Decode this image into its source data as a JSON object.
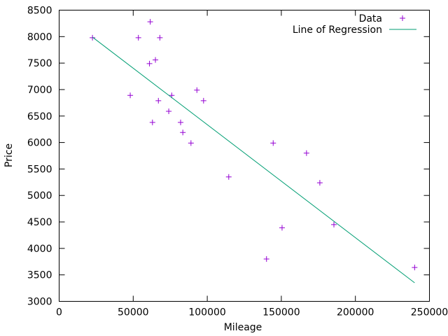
{
  "chart_data": {
    "type": "scatter",
    "title": "",
    "xlabel": "Mileage",
    "ylabel": "Price",
    "xlim": [
      0,
      250000
    ],
    "ylim": [
      3000,
      8500
    ],
    "xticks": [
      0,
      50000,
      100000,
      150000,
      200000,
      250000
    ],
    "yticks": [
      3000,
      3500,
      4000,
      4500,
      5000,
      5500,
      6000,
      6500,
      7000,
      7500,
      8000,
      8500
    ],
    "grid": false,
    "legend_position": "top-right",
    "series": [
      {
        "name": "Data",
        "kind": "points",
        "marker": "plus",
        "color": "#9400d3",
        "points": [
          [
            22500,
            7980
          ],
          [
            48000,
            6890
          ],
          [
            53500,
            7980
          ],
          [
            61000,
            7490
          ],
          [
            61500,
            8280
          ],
          [
            63000,
            6380
          ],
          [
            65000,
            7560
          ],
          [
            67000,
            6790
          ],
          [
            68000,
            7980
          ],
          [
            74000,
            6590
          ],
          [
            76000,
            6890
          ],
          [
            82000,
            6380
          ],
          [
            83500,
            6190
          ],
          [
            89000,
            5990
          ],
          [
            93000,
            6990
          ],
          [
            97500,
            6790
          ],
          [
            114500,
            5350
          ],
          [
            140000,
            3800
          ],
          [
            144500,
            5990
          ],
          [
            150500,
            4390
          ],
          [
            167000,
            5800
          ],
          [
            176000,
            5240
          ],
          [
            185500,
            4450
          ],
          [
            240000,
            3640
          ]
        ]
      },
      {
        "name": "Line of Regression",
        "kind": "line",
        "color": "#009e73",
        "points": [
          [
            22500,
            7990
          ],
          [
            240000,
            3350
          ]
        ]
      }
    ]
  }
}
